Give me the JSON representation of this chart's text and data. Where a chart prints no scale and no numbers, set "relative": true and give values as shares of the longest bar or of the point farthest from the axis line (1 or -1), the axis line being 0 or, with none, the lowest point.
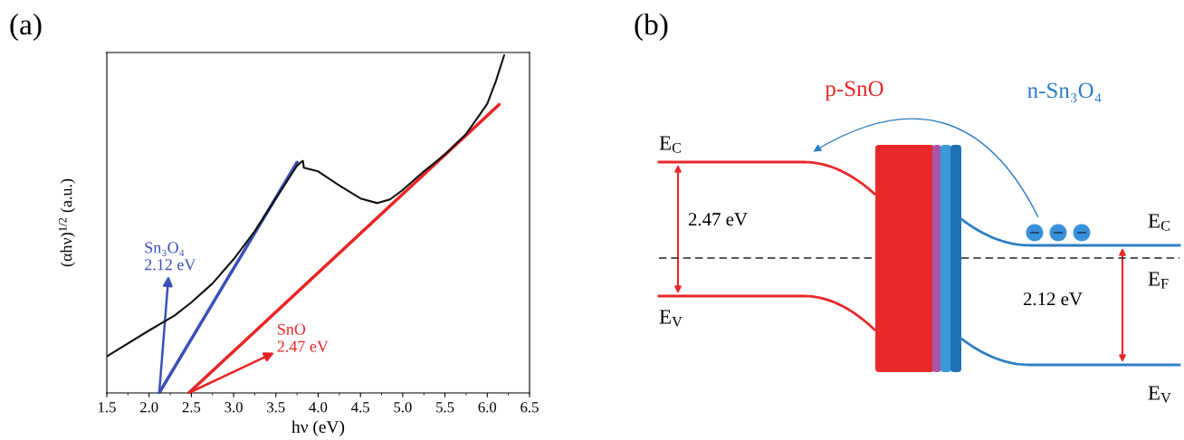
{
  "chart_data": [
    {
      "type": "line",
      "title": "(a)",
      "xlabel": "hν (eV)",
      "ylabel": "(αhν)$^{1/2}$ (a.u.)",
      "relative": true,
      "xlim": [
        1.5,
        6.5
      ],
      "xticks": [
        1.5,
        {
          "value": 2,
          "label": "2.0"
        },
        2.5,
        {
          "value": 3,
          "label": "3.0"
        },
        3.5,
        {
          "value": 4,
          "label": "4.0"
        },
        4.5,
        {
          "value": 5,
          "label": "5.0"
        },
        5.5,
        {
          "value": 6,
          "label": "6.0"
        },
        6.5
      ],
      "grid": false,
      "legend": false,
      "marker": "none",
      "line_style": "solid",
      "series": [
        {
          "color": "#111111",
          "x": [
            1.5,
            2.0,
            2.3,
            2.5,
            2.75,
            3.0,
            3.25,
            3.5,
            3.75,
            3.8,
            3.82,
            3.83,
            4.0,
            4.25,
            4.5,
            4.7,
            4.85,
            5.0,
            5.25,
            5.5,
            5.75,
            5.9,
            6.0,
            6.1,
            6.2
          ],
          "values": [
            0.108,
            0.185,
            0.229,
            0.268,
            0.324,
            0.396,
            0.479,
            0.576,
            0.673,
            0.684,
            0.687,
            0.667,
            0.656,
            0.614,
            0.576,
            0.562,
            0.573,
            0.601,
            0.656,
            0.706,
            0.767,
            0.82,
            0.856,
            0.922,
            1.0
          ]
        },
        {
          "type": "line",
          "color": "#3a50b8",
          "x": [
            2.12,
            3.75
          ],
          "values": [
            0,
            0.683
          ]
        },
        {
          "type": "line",
          "color": "#e82424",
          "x": [
            2.47,
            6.14
          ],
          "values": [
            0,
            0.854
          ]
        }
      ],
      "annotations": [
        {
          "text": "Sn₃O₄\n2.12 eV",
          "x": 2.12,
          "y": 0
        },
        {
          "text": "SnO\n2.47 eV",
          "x": 2.47,
          "y": 0
        }
      ]
    },
    {
      "type": "other",
      "title": "(b)",
      "annotations": [
        "p-SnO",
        "n-Sn₃O₄",
        "E$_{C}$",
        "2.47 eV",
        "E$_{V}$",
        "E$_{C}$",
        "E$_{F}$",
        "2.12 eV",
        "E$_{V}$"
      ]
    }
  ]
}
